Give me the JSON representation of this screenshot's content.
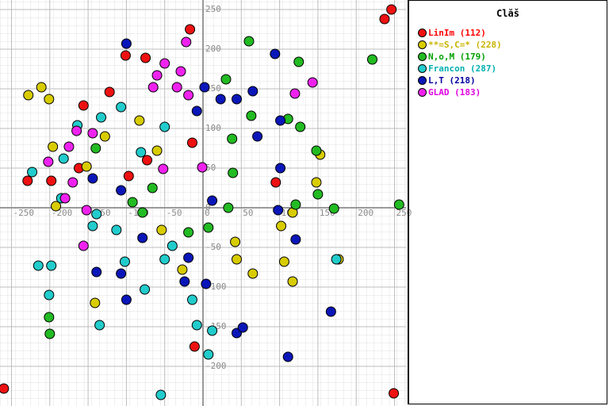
{
  "chart_data": {
    "type": "scatter",
    "title": "Clăš",
    "xlim": [
      -265,
      265
    ],
    "ylim": [
      -250,
      262
    ],
    "xticks": [
      -250,
      -200,
      -150,
      -100,
      -50,
      0,
      50,
      100,
      150,
      200,
      250
    ],
    "yticks": [
      -200,
      -150,
      -100,
      -50,
      0,
      50,
      100,
      150,
      200,
      250
    ],
    "grid": true,
    "legend": "right",
    "series": [
      {
        "name": "LinIm (112)",
        "color": "#ee1111",
        "label_color": "#ff0000",
        "x": [
          246,
          237,
          249,
          -260,
          -75,
          -101,
          -156,
          -122,
          -229,
          -198,
          -14,
          -11,
          -73,
          -97,
          95,
          -17,
          -162
        ],
        "y": [
          250,
          238,
          -234,
          -228,
          189,
          192,
          129,
          146,
          34,
          34,
          82,
          -175,
          60,
          40,
          32,
          225,
          50
        ]
      },
      {
        "name": "**=S,C=* (228)",
        "color": "#d8cc00",
        "label_color": "#c8b400",
        "x": [
          -228,
          -211,
          -201,
          -196,
          -141,
          -54,
          44,
          65,
          102,
          117,
          106,
          117,
          42,
          153,
          148,
          -83,
          -60,
          -27,
          -192,
          -152,
          -128,
          177
        ],
        "y": [
          142,
          152,
          137,
          77,
          -120,
          -28,
          -65,
          -83,
          -23,
          -6,
          -68,
          -93,
          -43,
          67,
          32,
          110,
          72,
          -78,
          2,
          52,
          90,
          -65
        ]
      },
      {
        "name": "N,o,M (179)",
        "color": "#22bb22",
        "label_color": "#00a000",
        "x": [
          60,
          221,
          125,
          111,
          127,
          148,
          150,
          171,
          256,
          38,
          39,
          33,
          -19,
          7,
          -79,
          -92,
          -66,
          -201,
          -200,
          63,
          30,
          121,
          -140
        ],
        "y": [
          210,
          187,
          184,
          112,
          102,
          72,
          17,
          -1,
          4,
          87,
          44,
          0,
          -31,
          -25,
          -6,
          7,
          25,
          -138,
          -159,
          116,
          162,
          4,
          75
        ]
      },
      {
        "name": "Francon (287)",
        "color": "#22cccc",
        "label_color": "#00b0b0",
        "x": [
          -198,
          -215,
          -201,
          -135,
          -139,
          -144,
          -113,
          -102,
          -76,
          -50,
          -14,
          -8,
          7,
          12,
          -55,
          -50,
          -164,
          -133,
          -107,
          -81,
          -223,
          -182,
          174,
          -40,
          -185
        ],
        "y": [
          -73,
          -73,
          -110,
          -148,
          -8,
          -23,
          -28,
          -68,
          -103,
          -65,
          -116,
          -148,
          -185,
          -155,
          -236,
          102,
          104,
          114,
          127,
          70,
          45,
          62,
          -65,
          -48,
          12
        ]
      },
      {
        "name": "L,T (218)",
        "color": "#0a16b8",
        "label_color": "#0000a0",
        "x": [
          -100,
          94,
          2,
          23,
          44,
          -8,
          65,
          101,
          71,
          101,
          98,
          121,
          12,
          -19,
          -24,
          4,
          44,
          52,
          -79,
          -139,
          -107,
          -100,
          167,
          111,
          -107,
          -144
        ],
        "y": [
          207,
          194,
          152,
          137,
          137,
          122,
          147,
          110,
          90,
          50,
          -3,
          -40,
          9,
          -63,
          -93,
          -96,
          -158,
          -151,
          -38,
          -81,
          -83,
          -116,
          -131,
          -188,
          22,
          37
        ]
      },
      {
        "name": "GLAD (183)",
        "color": "#ee22ee",
        "label_color": "#e000e0",
        "x": [
          -22,
          -50,
          -60,
          -29,
          -19,
          -65,
          143,
          120,
          -1,
          -52,
          -165,
          -144,
          -175,
          -202,
          -180,
          -156,
          -152,
          -170,
          -34
        ],
        "y": [
          209,
          182,
          167,
          172,
          142,
          152,
          158,
          144,
          51,
          49,
          97,
          94,
          77,
          58,
          12,
          -48,
          -3,
          32,
          152
        ]
      }
    ]
  }
}
